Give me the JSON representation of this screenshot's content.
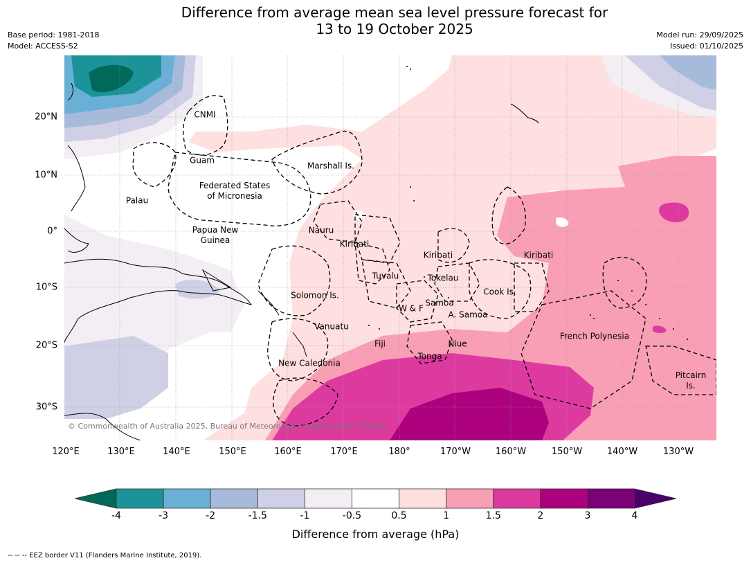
{
  "title": {
    "line1": "Difference from average mean sea level pressure forecast for",
    "line2": "13 to 19 October 2025"
  },
  "meta": {
    "base_period": "Base period: 1981-2018",
    "model": "Model: ACCESS-S2",
    "model_run": "Model run: 29/09/2025",
    "issued": "Issued: 01/10/2025"
  },
  "map": {
    "lon_ticks": [
      "120°E",
      "130°E",
      "140°E",
      "150°E",
      "160°E",
      "170°E",
      "180°",
      "170°W",
      "160°W",
      "150°W",
      "140°W",
      "130°W"
    ],
    "lat_ticks": [
      "20°N",
      "10°N",
      "0°",
      "10°S",
      "20°S",
      "30°S"
    ],
    "places": {
      "cnmi": "CNMI",
      "guam": "Guam",
      "marshall": "Marshall Is.",
      "fsm1": "Federated States",
      "fsm2": "of Micronesia",
      "palau": "Palau",
      "png1": "Papua New",
      "png2": "Guinea",
      "nauru": "Nauru",
      "kiribati_w": "Kiribati",
      "kiribati_c": "Kiribati",
      "kiribati_e": "Kiribati",
      "tuvalu": "Tuvalu",
      "tokelau": "Tokelau",
      "cook": "Cook Is.",
      "solomon": "Solomon Is.",
      "samoa": "Samoa",
      "wf": "W & F",
      "asamoa": "A. Samoa",
      "vanuatu": "Vanuatu",
      "fiji": "Fiji",
      "niue": "Niue",
      "tonga": "Tonga",
      "fpoly": "French Polynesia",
      "newcal": "New Caledonia",
      "pitcairn1": "Pitcairn",
      "pitcairn2": "Is."
    },
    "copyright": "© Commonwealth of Australia 2025, Bureau of Meteorology, supported by COSPPac"
  },
  "colorbar": {
    "label": "Difference from average (hPa)",
    "ticks": [
      "-4",
      "-3",
      "-2",
      "-1.5",
      "-1",
      "-0.5",
      "0.5",
      "1",
      "1.5",
      "2",
      "3",
      "4"
    ],
    "colors": {
      "below_min": "#00695a",
      "bins": [
        "#1b9399",
        "#6aafd6",
        "#a6bbda",
        "#cfd0e6",
        "#f3eef4",
        "#ffffff",
        "#fde0df",
        "#f99fb5",
        "#dd3aa0",
        "#ad017e",
        "#7a0177"
      ],
      "above_max": "#4a006a"
    }
  },
  "footer": "--  --  -- EEZ border V11 (Flanders Marine Institute, 2019)."
}
